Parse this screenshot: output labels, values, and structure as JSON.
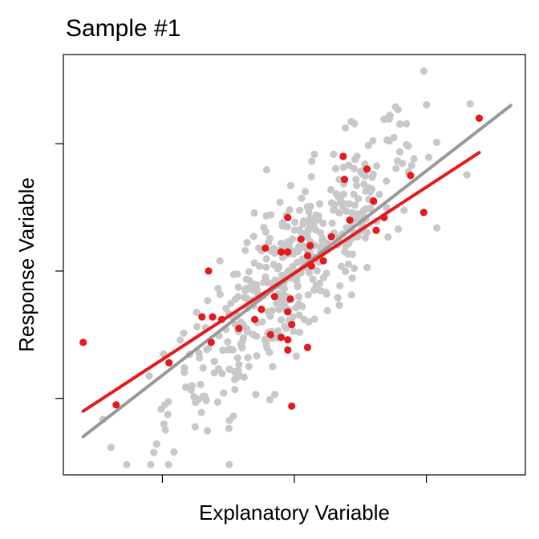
{
  "chart_data": {
    "type": "scatter",
    "title": "Sample #1",
    "xlabel": "Explanatory Variable",
    "ylabel": "Response Variable",
    "xlim": [
      -1.75,
      1.75
    ],
    "ylim": [
      -1.6,
      1.7
    ],
    "x_tick_values": [
      -1,
      0,
      1
    ],
    "y_tick_values": [
      -1,
      0,
      1
    ],
    "show_tick_labels": false,
    "grid": false,
    "colors": {
      "population_points": "#c8c8c8",
      "sample_points": "#e41a1c",
      "population_line": "#999999",
      "sample_line": "#e41a1c"
    },
    "population_points": {
      "count": 450,
      "x_mean": 0,
      "x_sd": 0.48,
      "y_slope": 1.05,
      "y_residual_sd": 0.31
    },
    "population_line": {
      "x": [
        -1.6,
        1.64
      ],
      "y": [
        -1.3,
        1.3
      ]
    },
    "sample_line": {
      "x": [
        -1.6,
        1.4
      ],
      "y": [
        -1.1,
        0.93
      ]
    },
    "sample_points": [
      {
        "x": -1.6,
        "y": -0.56
      },
      {
        "x": -1.35,
        "y": -1.05
      },
      {
        "x": -0.95,
        "y": -0.72
      },
      {
        "x": -0.7,
        "y": -0.36
      },
      {
        "x": -0.63,
        "y": -0.56
      },
      {
        "x": -0.65,
        "y": 0.0
      },
      {
        "x": -0.62,
        "y": -0.36
      },
      {
        "x": -0.55,
        "y": -0.38
      },
      {
        "x": -0.42,
        "y": -0.45
      },
      {
        "x": -0.3,
        "y": -0.38
      },
      {
        "x": -0.25,
        "y": -0.3
      },
      {
        "x": -0.22,
        "y": 0.18
      },
      {
        "x": -0.18,
        "y": -0.5
      },
      {
        "x": -0.15,
        "y": -0.2
      },
      {
        "x": -0.1,
        "y": 0.15
      },
      {
        "x": -0.1,
        "y": -0.52
      },
      {
        "x": -0.05,
        "y": 0.15
      },
      {
        "x": -0.05,
        "y": -0.54
      },
      {
        "x": -0.05,
        "y": -0.62
      },
      {
        "x": -0.05,
        "y": -0.32
      },
      {
        "x": -0.03,
        "y": -0.22
      },
      {
        "x": -0.02,
        "y": -0.42
      },
      {
        "x": -0.02,
        "y": -1.06
      },
      {
        "x": -0.05,
        "y": 0.42
      },
      {
        "x": 0.05,
        "y": 0.25
      },
      {
        "x": 0.1,
        "y": 0.12
      },
      {
        "x": 0.12,
        "y": 0.2
      },
      {
        "x": 0.1,
        "y": -0.6
      },
      {
        "x": 0.13,
        "y": 0.04
      },
      {
        "x": 0.22,
        "y": 0.08
      },
      {
        "x": 0.28,
        "y": 0.27
      },
      {
        "x": 0.37,
        "y": 0.9
      },
      {
        "x": 0.38,
        "y": 0.72
      },
      {
        "x": 0.42,
        "y": 0.4
      },
      {
        "x": 0.55,
        "y": 0.8
      },
      {
        "x": 0.6,
        "y": 0.55
      },
      {
        "x": 0.62,
        "y": 0.32
      },
      {
        "x": 0.68,
        "y": 0.42
      },
      {
        "x": 0.88,
        "y": 0.75
      },
      {
        "x": 0.98,
        "y": 0.46
      },
      {
        "x": 1.4,
        "y": 1.2
      }
    ]
  }
}
